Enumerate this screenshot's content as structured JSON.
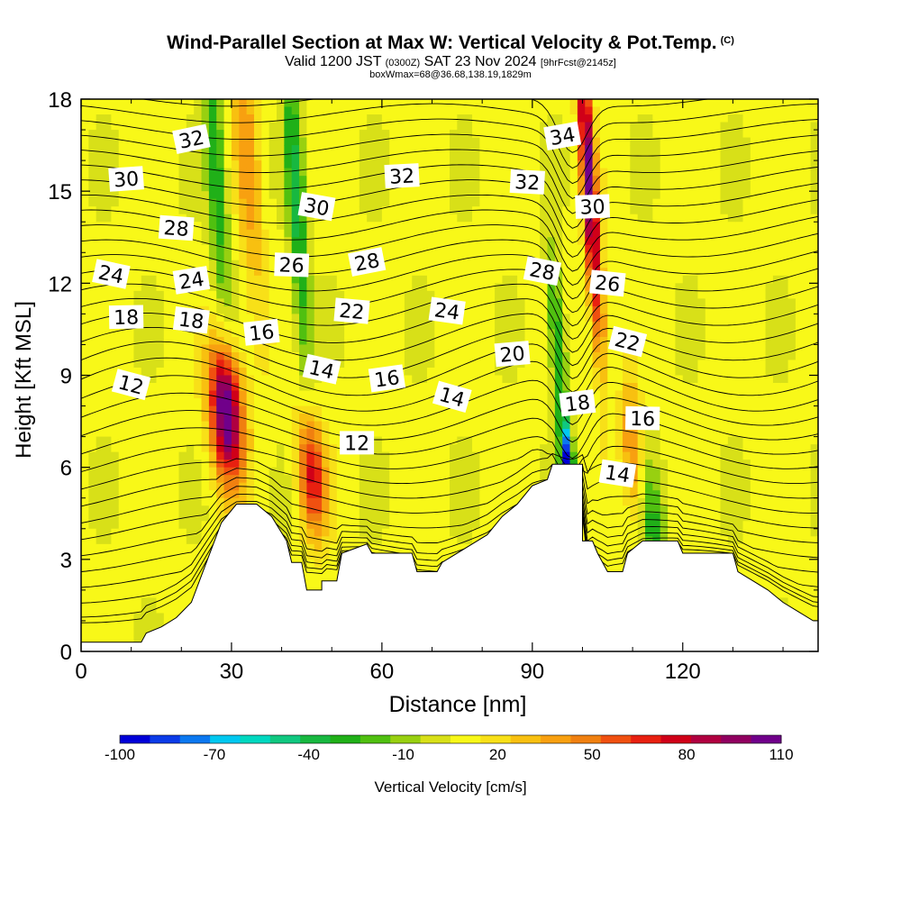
{
  "title": {
    "main": "Wind-Parallel Section at Max W: Vertical Velocity & Pot.Temp.",
    "copyright": "(C)",
    "valid_prefix": "Valid 1200 JST",
    "valid_utc": "(0300Z)",
    "valid_date": "SAT 23 Nov 2024",
    "forecast": "[9hrFcst@2145z]",
    "boxwmax": "boxWmax=68@36.68,138.19,1829m"
  },
  "chart_data": {
    "type": "heatmap",
    "xlabel": "Distance [nm]",
    "ylabel": "Height [Kft MSL]",
    "xlim": [
      0,
      147
    ],
    "ylim": [
      0,
      18
    ],
    "x_ticks": [
      0,
      30,
      60,
      90,
      120
    ],
    "y_ticks": [
      0,
      3,
      6,
      9,
      12,
      15,
      18
    ],
    "colorbar": {
      "title": "Vertical Velocity [cm/s]",
      "tick_labels": [
        -100,
        -70,
        -40,
        -10,
        20,
        50,
        80,
        110
      ],
      "colors": [
        "#0000d8",
        "#0b3be8",
        "#0b78f0",
        "#00c8f0",
        "#00d8c0",
        "#10c880",
        "#18b840",
        "#20b018",
        "#50c010",
        "#98d010",
        "#d8e018",
        "#f8f818",
        "#f8e018",
        "#f8c010",
        "#f8a010",
        "#f08010",
        "#f05010",
        "#e82010",
        "#d00018",
        "#b00040",
        "#900060",
        "#70008a"
      ]
    },
    "velocity_cores": [
      {
        "x": 29,
        "z": 7.8,
        "w": 110,
        "sx": 3.2,
        "sz": 2.2
      },
      {
        "x": 46,
        "z": 5.8,
        "w": 70,
        "sx": 2.6,
        "sz": 2.0
      },
      {
        "x": 33,
        "z": 16.5,
        "w": 30,
        "sx": 2.5,
        "sz": 6
      },
      {
        "x": 101,
        "z": 16.0,
        "w": 95,
        "sx": 1.4,
        "sz": 4
      },
      {
        "x": 103,
        "z": 11.5,
        "w": 40,
        "sx": 1.6,
        "sz": 3
      },
      {
        "x": 110,
        "z": 6.5,
        "w": 40,
        "sx": 2.0,
        "sz": 2.4
      },
      {
        "x": 97,
        "z": 6.0,
        "w": -100,
        "sx": 1.2,
        "sz": 1.5
      },
      {
        "x": 43,
        "z": 14.5,
        "w": -45,
        "sx": 1.8,
        "sz": 6
      },
      {
        "x": 27,
        "z": 15.5,
        "w": -40,
        "sx": 2.0,
        "sz": 5
      },
      {
        "x": 95,
        "z": 10.0,
        "w": -45,
        "sx": 1.6,
        "sz": 3
      },
      {
        "x": 114,
        "z": 4.0,
        "w": -35,
        "sx": 2.5,
        "sz": 2
      }
    ],
    "terrain": [
      [
        0,
        0.3
      ],
      [
        12,
        0.3
      ],
      [
        13,
        0.6
      ],
      [
        16,
        0.8
      ],
      [
        19,
        1.1
      ],
      [
        22,
        1.6
      ],
      [
        25,
        2.9
      ],
      [
        28,
        4.2
      ],
      [
        31,
        4.8
      ],
      [
        35,
        4.8
      ],
      [
        38,
        4.4
      ],
      [
        41,
        3.6
      ],
      [
        42,
        2.9
      ],
      [
        44,
        2.9
      ],
      [
        45,
        2.0
      ],
      [
        48,
        2.0
      ],
      [
        48,
        2.3
      ],
      [
        51,
        2.3
      ],
      [
        52,
        3.2
      ],
      [
        57,
        3.5
      ],
      [
        58,
        3.2
      ],
      [
        66,
        3.2
      ],
      [
        67,
        2.6
      ],
      [
        71,
        2.6
      ],
      [
        72,
        2.9
      ],
      [
        78,
        3.5
      ],
      [
        81,
        3.8
      ],
      [
        84,
        4.4
      ],
      [
        87,
        4.8
      ],
      [
        90,
        5.4
      ],
      [
        93,
        5.6
      ],
      [
        94,
        6.1
      ],
      [
        100,
        6.1
      ],
      [
        100,
        3.6
      ],
      [
        102,
        3.6
      ],
      [
        103,
        3.2
      ],
      [
        105,
        2.6
      ],
      [
        108,
        2.6
      ],
      [
        109,
        3.2
      ],
      [
        112,
        3.6
      ],
      [
        119,
        3.6
      ],
      [
        120,
        3.2
      ],
      [
        130,
        3.2
      ],
      [
        131,
        2.6
      ],
      [
        134,
        2.3
      ],
      [
        137,
        2.0
      ],
      [
        140,
        1.6
      ],
      [
        143,
        1.3
      ],
      [
        146,
        1.0
      ],
      [
        147,
        1.0
      ]
    ],
    "isentrope_labels": [
      {
        "text": "32",
        "x": 22,
        "z": 16.7
      },
      {
        "text": "30",
        "x": 9,
        "z": 15.4
      },
      {
        "text": "28",
        "x": 19,
        "z": 13.8
      },
      {
        "text": "24",
        "x": 6,
        "z": 12.3
      },
      {
        "text": "24",
        "x": 22,
        "z": 12.1
      },
      {
        "text": "18",
        "x": 9,
        "z": 10.9
      },
      {
        "text": "18",
        "x": 22,
        "z": 10.8
      },
      {
        "text": "12",
        "x": 10,
        "z": 8.7
      },
      {
        "text": "16",
        "x": 36,
        "z": 10.4
      },
      {
        "text": "26",
        "x": 42,
        "z": 12.6
      },
      {
        "text": "30",
        "x": 47,
        "z": 14.5
      },
      {
        "text": "28",
        "x": 57,
        "z": 12.7
      },
      {
        "text": "32",
        "x": 64,
        "z": 15.5
      },
      {
        "text": "22",
        "x": 54,
        "z": 11.1
      },
      {
        "text": "14",
        "x": 48,
        "z": 9.2
      },
      {
        "text": "16",
        "x": 61,
        "z": 8.9
      },
      {
        "text": "12",
        "x": 55,
        "z": 6.8
      },
      {
        "text": "24",
        "x": 73,
        "z": 11.1
      },
      {
        "text": "14",
        "x": 74,
        "z": 8.3
      },
      {
        "text": "20",
        "x": 86,
        "z": 9.7
      },
      {
        "text": "32",
        "x": 89,
        "z": 15.3
      },
      {
        "text": "28",
        "x": 92,
        "z": 12.4
      },
      {
        "text": "34",
        "x": 96,
        "z": 16.8
      },
      {
        "text": "30",
        "x": 102,
        "z": 14.5
      },
      {
        "text": "26",
        "x": 105,
        "z": 12.0
      },
      {
        "text": "22",
        "x": 109,
        "z": 10.1
      },
      {
        "text": "18",
        "x": 99,
        "z": 8.1
      },
      {
        "text": "16",
        "x": 112,
        "z": 7.6
      },
      {
        "text": "14",
        "x": 107,
        "z": 5.8
      }
    ]
  }
}
